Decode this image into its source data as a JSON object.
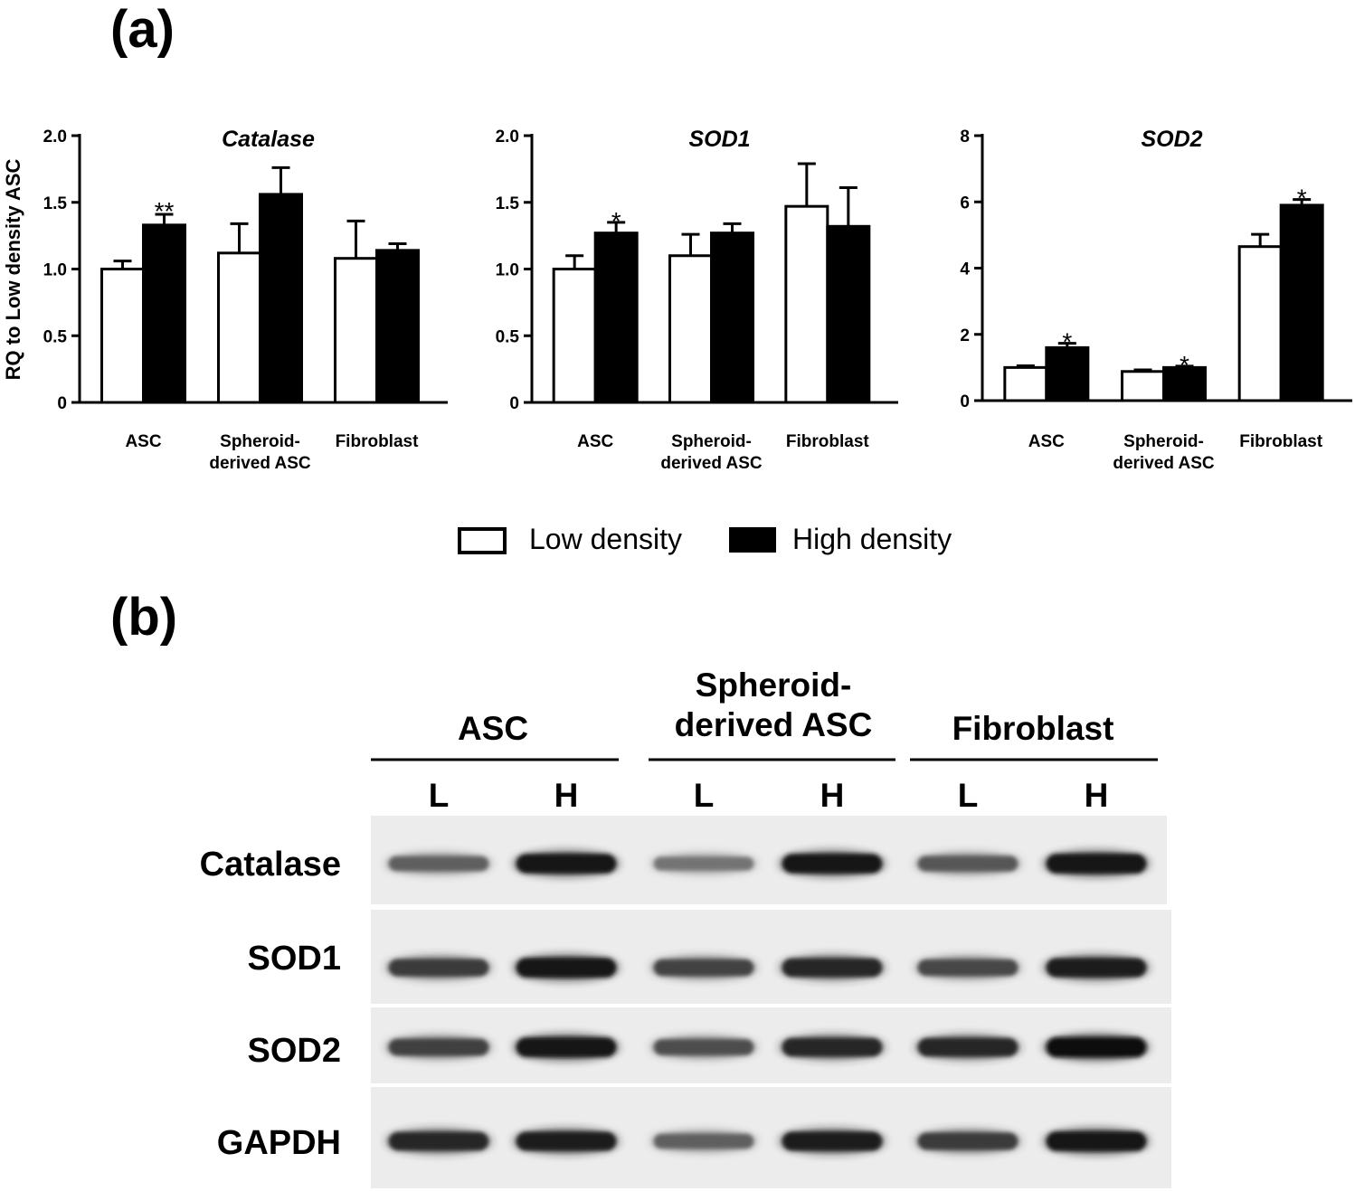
{
  "figure": {
    "panel_a_label": "(a)",
    "panel_b_label": "(b)"
  },
  "chart_data": [
    {
      "type": "bar",
      "title": "Catalase",
      "ylabel": "RQ to Low density ASC",
      "ylim": [
        0,
        2.0
      ],
      "yticks": [
        "0",
        "0.5",
        "1.0",
        "1.5",
        "2.0"
      ],
      "categories": [
        "ASC",
        "Spheroid-\nderived ASC",
        "Fibroblast"
      ],
      "series": [
        {
          "name": "Low density",
          "values": [
            1.0,
            1.12,
            1.08
          ],
          "errors": [
            0.06,
            0.22,
            0.28
          ]
        },
        {
          "name": "High density",
          "values": [
            1.33,
            1.56,
            1.14
          ],
          "errors": [
            0.08,
            0.2,
            0.05
          ]
        }
      ],
      "significance": [
        "**",
        "",
        ""
      ]
    },
    {
      "type": "bar",
      "title": "SOD1",
      "ylabel": "",
      "ylim": [
        0,
        2.0
      ],
      "yticks": [
        "0",
        "0.5",
        "1.0",
        "1.5",
        "2.0"
      ],
      "categories": [
        "ASC",
        "Spheroid-\nderived ASC",
        "Fibroblast"
      ],
      "series": [
        {
          "name": "Low density",
          "values": [
            1.0,
            1.1,
            1.47
          ],
          "errors": [
            0.1,
            0.16,
            0.32
          ]
        },
        {
          "name": "High density",
          "values": [
            1.27,
            1.27,
            1.32
          ],
          "errors": [
            0.08,
            0.07,
            0.29
          ]
        }
      ],
      "significance": [
        "*",
        "",
        ""
      ]
    },
    {
      "type": "bar",
      "title": "SOD2",
      "ylabel": "",
      "ylim": [
        0,
        8
      ],
      "yticks": [
        "0",
        "2",
        "4",
        "6",
        "8"
      ],
      "categories": [
        "ASC",
        "Spheroid-\nderived ASC",
        "Fibroblast"
      ],
      "series": [
        {
          "name": "Low density",
          "values": [
            1.0,
            0.88,
            4.65
          ],
          "errors": [
            0.05,
            0.05,
            0.37
          ]
        },
        {
          "name": "High density",
          "values": [
            1.6,
            1.0,
            5.9
          ],
          "errors": [
            0.13,
            0.04,
            0.17
          ]
        }
      ],
      "significance": [
        "*",
        "*",
        "*"
      ]
    }
  ],
  "legend": {
    "placement": "bottom-center",
    "items": [
      {
        "label": "Low density",
        "fill": "#ffffff"
      },
      {
        "label": "High density",
        "fill": "#000000"
      }
    ]
  },
  "western_blot": {
    "groups": [
      "ASC",
      "Spheroid-\nderived ASC",
      "Fibroblast"
    ],
    "lanes": [
      "L",
      "H",
      "L",
      "H",
      "L",
      "H"
    ],
    "proteins": [
      {
        "name": "Catalase",
        "band_intensity": [
          0.55,
          0.92,
          0.45,
          0.92,
          0.6,
          0.95
        ]
      },
      {
        "name": "SOD1",
        "band_intensity": [
          0.75,
          0.95,
          0.7,
          0.85,
          0.68,
          0.9
        ]
      },
      {
        "name": "SOD2",
        "band_intensity": [
          0.72,
          0.95,
          0.65,
          0.85,
          0.85,
          0.97
        ]
      },
      {
        "name": "GAPDH",
        "band_intensity": [
          0.85,
          0.9,
          0.55,
          0.9,
          0.75,
          0.95
        ]
      }
    ]
  }
}
